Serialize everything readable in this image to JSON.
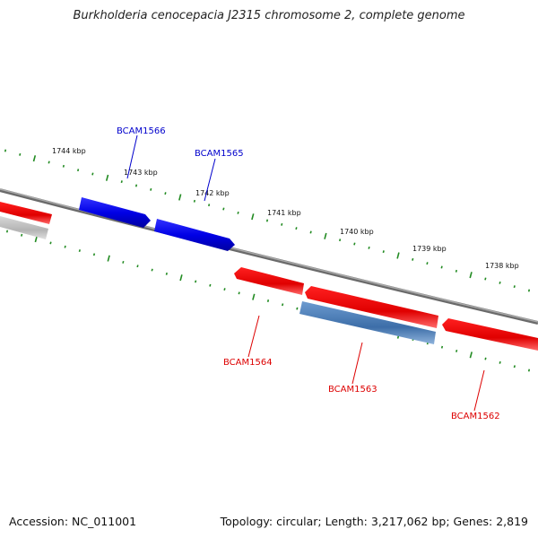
{
  "title": "Burkholderia cenocepacia J2315 chromosome 2, complete genome",
  "accession_label": "Accession: NC_011001",
  "topology_label": "Topology: circular; Length: 3,217,062 bp; Genes: 2,819",
  "colors": {
    "forward_gene": "#0000ee",
    "reverse_gene": "#ee0000",
    "pseudo_gene": "#4f81bd",
    "off_gene": "#c8c8c8",
    "backbone": "#808080",
    "tick": "#228b22"
  },
  "ruler": {
    "ticks": [
      {
        "label": "1744 kbp"
      },
      {
        "label": "1743 kbp"
      },
      {
        "label": "1742 kbp"
      },
      {
        "label": "1741 kbp"
      },
      {
        "label": "1740 kbp"
      },
      {
        "label": "1739 kbp"
      },
      {
        "label": "1738 kbp"
      }
    ]
  },
  "genes": [
    {
      "label": "BCAM1566",
      "strand": "forward"
    },
    {
      "label": "BCAM1565",
      "strand": "forward"
    },
    {
      "label": "BCAM1564",
      "strand": "reverse"
    },
    {
      "label": "BCAM1563",
      "strand": "reverse"
    },
    {
      "label": "BCAM1562",
      "strand": "reverse"
    }
  ]
}
